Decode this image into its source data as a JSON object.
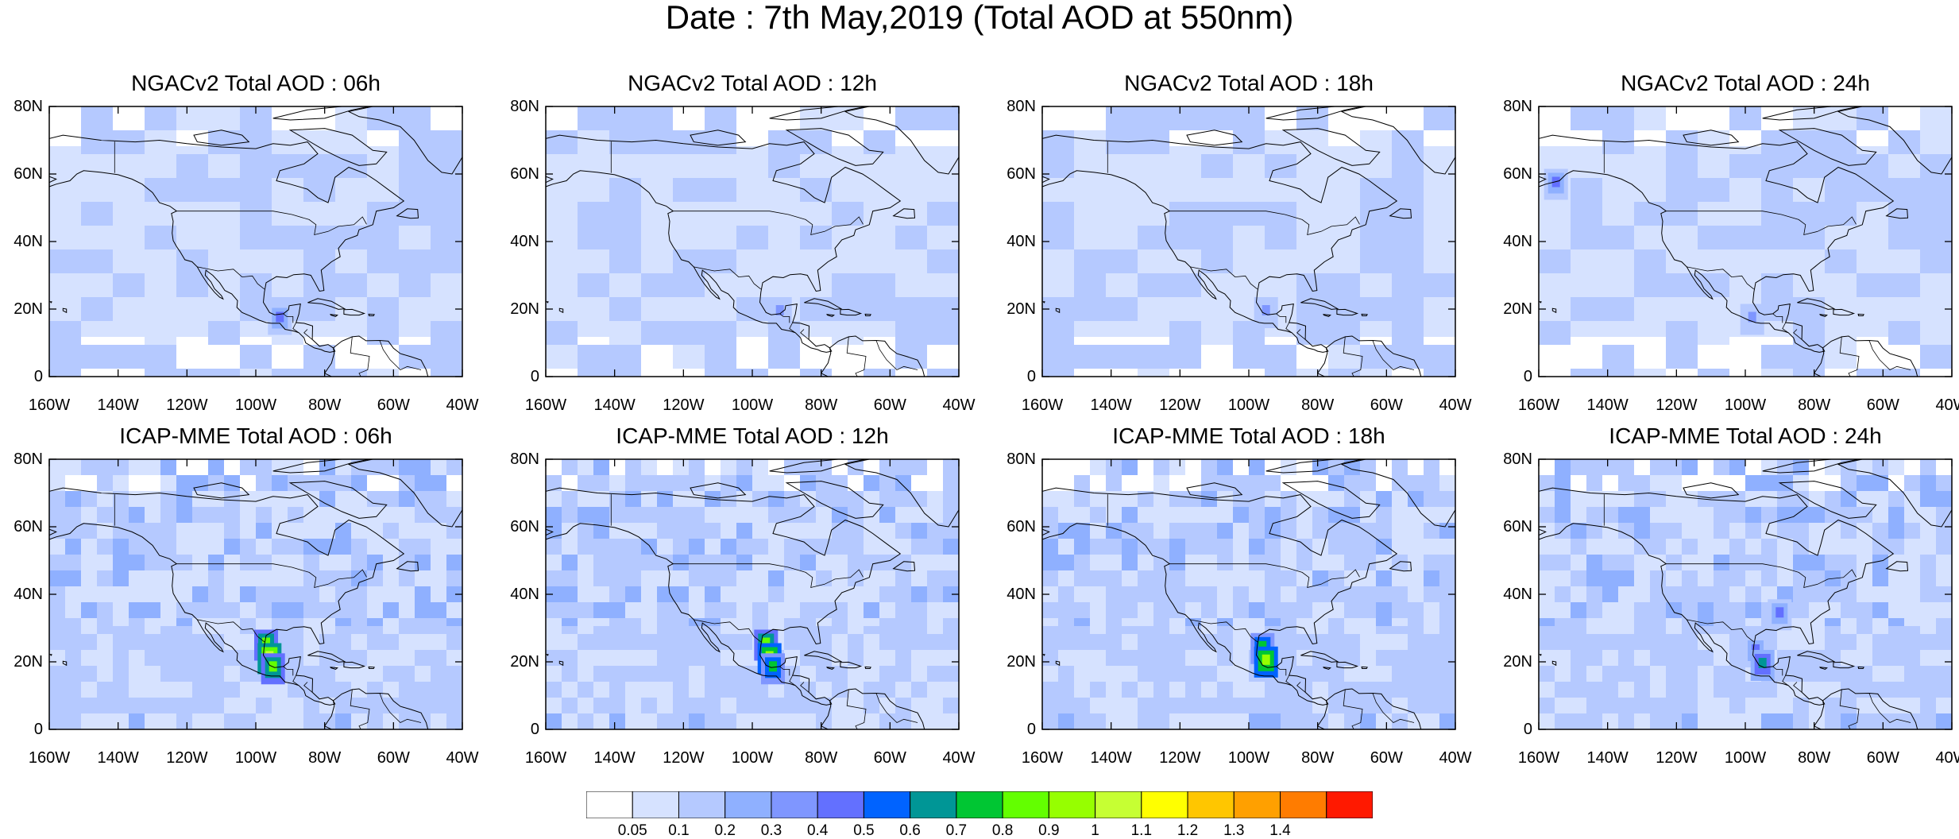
{
  "title": "Date : 7th May,2019 (Total AOD at 550nm)",
  "panels": [
    {
      "title": "NGACv2 Total AOD : 06h",
      "model": "NGACv2",
      "hour": "06h",
      "hotspots": [
        {
          "lon": -93,
          "lat": 18,
          "level": 5
        }
      ]
    },
    {
      "title": "NGACv2 Total AOD : 12h",
      "model": "NGACv2",
      "hour": "12h",
      "hotspots": [
        {
          "lon": -92,
          "lat": 20,
          "level": 4
        }
      ]
    },
    {
      "title": "NGACv2 Total AOD : 18h",
      "model": "NGACv2",
      "hour": "18h",
      "hotspots": [
        {
          "lon": -95,
          "lat": 20,
          "level": 4
        }
      ]
    },
    {
      "title": "NGACv2 Total AOD : 24h",
      "model": "NGACv2",
      "hour": "24h",
      "hotspots": [
        {
          "lon": -155,
          "lat": 58,
          "level": 5
        },
        {
          "lon": -98,
          "lat": 18,
          "level": 4
        }
      ]
    },
    {
      "title": "ICAP-MME Total AOD : 06h",
      "model": "ICAP-MME",
      "hour": "06h",
      "hotspots": [
        {
          "lon": -97,
          "lat": 26,
          "level": 9
        },
        {
          "lon": -96,
          "lat": 22,
          "level": 11
        },
        {
          "lon": -95,
          "lat": 19,
          "level": 9
        }
      ]
    },
    {
      "title": "ICAP-MME Total AOD : 12h",
      "model": "ICAP-MME",
      "hour": "12h",
      "hotspots": [
        {
          "lon": -96,
          "lat": 26,
          "level": 9
        },
        {
          "lon": -95,
          "lat": 22,
          "level": 10
        },
        {
          "lon": -94,
          "lat": 19,
          "level": 8
        }
      ]
    },
    {
      "title": "ICAP-MME Total AOD : 18h",
      "model": "ICAP-MME",
      "hour": "18h",
      "hotspots": [
        {
          "lon": -96,
          "lat": 25,
          "level": 8
        },
        {
          "lon": -95,
          "lat": 21,
          "level": 10
        }
      ]
    },
    {
      "title": "ICAP-MME Total AOD : 24h",
      "model": "ICAP-MME",
      "hour": "24h",
      "hotspots": [
        {
          "lon": -97,
          "lat": 24,
          "level": 5
        },
        {
          "lon": -95,
          "lat": 20,
          "level": 7
        },
        {
          "lon": -90,
          "lat": 35,
          "level": 5
        }
      ]
    }
  ],
  "axes": {
    "lat_labels": [
      "80N",
      "60N",
      "40N",
      "20N",
      "0"
    ],
    "lat_values": [
      80,
      60,
      40,
      20,
      0
    ],
    "lon_labels": [
      "160W",
      "140W",
      "120W",
      "100W",
      "80W",
      "60W",
      "40W"
    ],
    "lon_values": [
      -160,
      -140,
      -120,
      -100,
      -80,
      -60,
      -40
    ],
    "lon_range": [
      -160,
      -40
    ],
    "lat_range": [
      0,
      80
    ]
  },
  "colorbar": {
    "labels": [
      "0.05",
      "0.1",
      "0.2",
      "0.3",
      "0.4",
      "0.5",
      "0.6",
      "0.7",
      "0.8",
      "0.9",
      "1",
      "1.1",
      "1.2",
      "1.3",
      "1.4"
    ],
    "colors": [
      "#ffffff",
      "#d6e2ff",
      "#b5c9ff",
      "#8fb0ff",
      "#7f96ff",
      "#6370ff",
      "#0063ff",
      "#009696",
      "#00c633",
      "#63ff00",
      "#96ff00",
      "#c6ff33",
      "#ffff00",
      "#ffc600",
      "#ffa000",
      "#ff7c00",
      "#ff1900"
    ]
  }
}
